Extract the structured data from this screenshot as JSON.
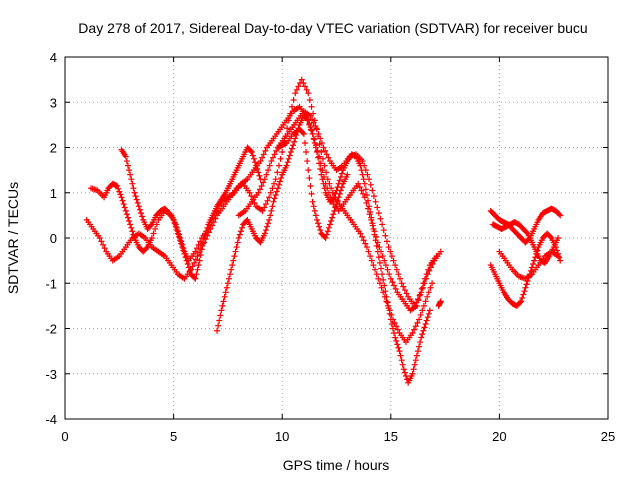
{
  "chart_data": {
    "type": "scatter",
    "title": "Day 278 of 2017, Sidereal Day-to-day VTEC variation (SDTVAR) for receiver bucu",
    "xlabel": "GPS time / hours",
    "ylabel": "SDTVAR / TECUs",
    "xlim": [
      0,
      25
    ],
    "ylim": [
      -4,
      4
    ],
    "xticks": [
      "0",
      "5",
      "10",
      "15",
      "20",
      "25"
    ],
    "yticks": [
      "-4",
      "-3",
      "-2",
      "-1",
      "0",
      "1",
      "2",
      "3",
      "4"
    ],
    "grid": true,
    "marker": "+",
    "color": "#ff0000",
    "series": [
      {
        "x": [
          1.2,
          1.5,
          1.8,
          2.0,
          2.2,
          2.4,
          2.6,
          2.8,
          3.0,
          3.2,
          3.4,
          3.6,
          3.8,
          4.0,
          4.3,
          4.6,
          4.9,
          5.1,
          5.3,
          5.5,
          5.7,
          6.0,
          6.3,
          6.6,
          6.9,
          7.2,
          7.5,
          7.8,
          8.1,
          8.4,
          8.7,
          9.0,
          9.3,
          9.6,
          9.9,
          10.2,
          10.5,
          10.8,
          11.1,
          11.4,
          11.7,
          12.0,
          12.3,
          12.6,
          12.9,
          13.2,
          13.5,
          13.8,
          14.1,
          14.4,
          14.7,
          15.0,
          15.3,
          15.6,
          15.9,
          16.2,
          16.5,
          16.8,
          17.1
        ],
        "y": [
          1.1,
          1.05,
          0.9,
          1.1,
          1.2,
          1.15,
          0.9,
          0.6,
          0.3,
          0.0,
          -0.2,
          -0.3,
          -0.2,
          0.0,
          0.4,
          0.6,
          0.5,
          0.3,
          0.0,
          -0.3,
          -0.5,
          -0.3,
          0.0,
          0.2,
          0.5,
          0.8,
          0.9,
          1.0,
          1.2,
          1.3,
          1.5,
          1.7,
          2.0,
          2.2,
          2.4,
          2.6,
          2.8,
          2.9,
          2.7,
          2.3,
          1.8,
          1.2,
          0.8,
          0.6,
          0.8,
          1.0,
          1.2,
          0.9,
          0.4,
          -0.1,
          -0.5,
          -0.9,
          -1.2,
          -1.4,
          -1.6,
          -1.5,
          -1.0,
          -0.6,
          -0.4
        ]
      },
      {
        "x": [
          1.0,
          1.3,
          1.6,
          1.9,
          2.2,
          2.5,
          2.8,
          3.1,
          3.4,
          3.7,
          4.0,
          4.3,
          4.6,
          4.9,
          5.2,
          5.5,
          5.8,
          6.1,
          6.4,
          6.7,
          7.0,
          7.3,
          7.6,
          7.9,
          8.2,
          8.5,
          8.8,
          9.1,
          9.4,
          9.7,
          10.0,
          10.3,
          10.6,
          10.9,
          11.2,
          11.5,
          11.8,
          12.1,
          12.4,
          12.7,
          13.0,
          13.3,
          13.6,
          13.9,
          14.2,
          14.5,
          14.8,
          15.1,
          15.4,
          15.7,
          16.0,
          16.3,
          16.6,
          16.9
        ],
        "y": [
          0.4,
          0.2,
          0.0,
          -0.3,
          -0.5,
          -0.4,
          -0.2,
          0.0,
          0.1,
          0.0,
          -0.2,
          -0.3,
          -0.4,
          -0.6,
          -0.8,
          -0.9,
          -0.7,
          -0.4,
          -0.1,
          0.2,
          0.5,
          0.7,
          0.9,
          1.1,
          1.2,
          1.0,
          0.7,
          0.6,
          0.9,
          1.3,
          1.9,
          2.6,
          3.2,
          3.5,
          3.2,
          2.6,
          1.9,
          1.3,
          0.9,
          0.7,
          0.5,
          0.3,
          0.1,
          -0.2,
          -0.6,
          -1.0,
          -1.4,
          -1.8,
          -2.1,
          -2.3,
          -2.1,
          -1.8,
          -1.4,
          -1.0
        ]
      },
      {
        "x": [
          2.6,
          2.8,
          3.0,
          3.2,
          3.4,
          3.6,
          3.8,
          4.0,
          4.2,
          4.4,
          4.6,
          4.8,
          5.0,
          5.2,
          5.4,
          5.6,
          5.8,
          6.0,
          6.2,
          6.4,
          6.6,
          6.8,
          7.0,
          7.2,
          7.4,
          7.6,
          7.8,
          8.0,
          8.2,
          8.4,
          8.6,
          8.8,
          9.0
        ],
        "y": [
          1.95,
          1.8,
          1.4,
          1.0,
          0.7,
          0.4,
          0.2,
          0.3,
          0.5,
          0.6,
          0.65,
          0.55,
          0.4,
          0.1,
          -0.2,
          -0.5,
          -0.8,
          -0.9,
          -0.5,
          0.0,
          0.3,
          0.5,
          0.7,
          0.85,
          1.0,
          1.2,
          1.4,
          1.6,
          1.8,
          2.0,
          1.9,
          1.6,
          1.3
        ]
      },
      {
        "x": [
          7.0,
          7.2,
          7.4,
          7.6,
          7.8,
          8.0,
          8.2,
          8.4,
          8.6,
          8.8,
          9.0,
          9.2,
          9.4,
          9.6,
          9.8,
          10.0,
          10.2,
          10.4,
          10.6,
          10.8,
          11.0,
          11.2,
          11.4,
          11.6,
          11.8,
          12.0,
          12.2,
          12.4,
          12.6,
          12.8,
          13.0,
          13.2,
          13.4,
          13.6,
          13.8,
          14.0,
          14.2,
          14.4,
          14.6,
          14.8,
          15.0,
          15.2,
          15.4,
          15.6,
          15.8,
          16.0,
          16.2,
          16.4,
          16.6,
          16.8
        ],
        "y": [
          -2.05,
          -1.6,
          -1.2,
          -0.8,
          -0.4,
          0.0,
          0.3,
          0.4,
          0.2,
          0.0,
          -0.1,
          0.1,
          0.4,
          0.8,
          1.1,
          1.4,
          1.6,
          1.9,
          2.2,
          2.5,
          2.7,
          2.6,
          2.3,
          1.9,
          1.4,
          1.0,
          0.8,
          0.9,
          1.2,
          1.5,
          1.7,
          1.85,
          1.8,
          1.6,
          1.2,
          0.7,
          0.2,
          -0.3,
          -0.8,
          -1.3,
          -1.8,
          -2.2,
          -2.5,
          -2.9,
          -3.2,
          -3.0,
          -2.6,
          -2.2,
          -1.9,
          -1.6
        ]
      },
      {
        "x": [
          8.0,
          8.3,
          8.6,
          8.9,
          9.2,
          9.5,
          9.8,
          10.1,
          10.4,
          10.7,
          11.0,
          11.3,
          11.6,
          11.9,
          12.2,
          12.5,
          12.8,
          13.1,
          13.4,
          13.7,
          14.0,
          14.3,
          14.6,
          14.9,
          15.2,
          15.5,
          15.8,
          16.1,
          16.4,
          16.7,
          17.0,
          17.3
        ],
        "y": [
          0.5,
          0.6,
          0.8,
          1.0,
          1.3,
          1.7,
          2.0,
          2.2,
          2.4,
          2.6,
          2.8,
          2.7,
          2.4,
          2.0,
          1.7,
          1.5,
          1.6,
          1.8,
          1.85,
          1.7,
          1.3,
          0.8,
          0.3,
          -0.2,
          -0.6,
          -1.0,
          -1.3,
          -1.5,
          -1.2,
          -0.8,
          -0.5,
          -0.3
        ]
      },
      {
        "x": [
          9.8,
          10.0,
          10.2,
          10.5,
          10.8,
          11.0,
          11.2,
          11.4,
          11.6,
          11.8,
          12.0,
          12.2,
          12.4,
          12.6,
          12.8,
          13.0
        ],
        "y": [
          2.0,
          2.05,
          2.1,
          2.3,
          2.4,
          2.3,
          1.5,
          0.8,
          0.4,
          0.1,
          0.0,
          0.3,
          0.6,
          0.9,
          1.2,
          1.4
        ]
      },
      {
        "x": [
          17.2,
          17.3
        ],
        "y": [
          -1.5,
          -1.4
        ]
      },
      {
        "x": [
          19.6,
          19.8,
          20.0,
          20.2,
          20.4,
          20.6,
          20.8,
          21.0,
          21.2,
          21.4,
          21.6,
          21.8,
          22.0,
          22.2,
          22.4,
          22.6,
          22.8
        ],
        "y": [
          0.6,
          0.5,
          0.4,
          0.35,
          0.3,
          0.2,
          0.1,
          0.0,
          -0.1,
          0.0,
          0.2,
          0.4,
          0.55,
          0.6,
          0.65,
          0.6,
          0.5
        ]
      },
      {
        "x": [
          19.6,
          19.8,
          20.0,
          20.2,
          20.4,
          20.6,
          20.8,
          21.0,
          21.2,
          21.4,
          21.6,
          21.8,
          22.0,
          22.2,
          22.4,
          22.6,
          22.8
        ],
        "y": [
          -0.6,
          -0.8,
          -1.0,
          -1.2,
          -1.35,
          -1.45,
          -1.5,
          -1.4,
          -1.1,
          -0.8,
          -0.5,
          -0.2,
          0.0,
          0.1,
          0.0,
          -0.2,
          -0.5
        ]
      },
      {
        "x": [
          19.7,
          19.9,
          20.1,
          20.3,
          20.5,
          20.7,
          20.9,
          21.1,
          21.3,
          21.5,
          21.7,
          21.9,
          22.1,
          22.3,
          22.5,
          22.7
        ],
        "y": [
          0.3,
          0.25,
          0.2,
          0.25,
          0.3,
          0.35,
          0.3,
          0.2,
          0.1,
          -0.1,
          -0.3,
          -0.5,
          -0.55,
          -0.4,
          -0.2,
          0.0
        ]
      },
      {
        "x": [
          20.0,
          20.3,
          20.6,
          20.9,
          21.2,
          21.5,
          21.8,
          22.1,
          22.4,
          22.7
        ],
        "y": [
          -0.3,
          -0.5,
          -0.7,
          -0.85,
          -0.9,
          -0.8,
          -0.6,
          -0.4,
          -0.3,
          -0.4
        ]
      }
    ]
  }
}
